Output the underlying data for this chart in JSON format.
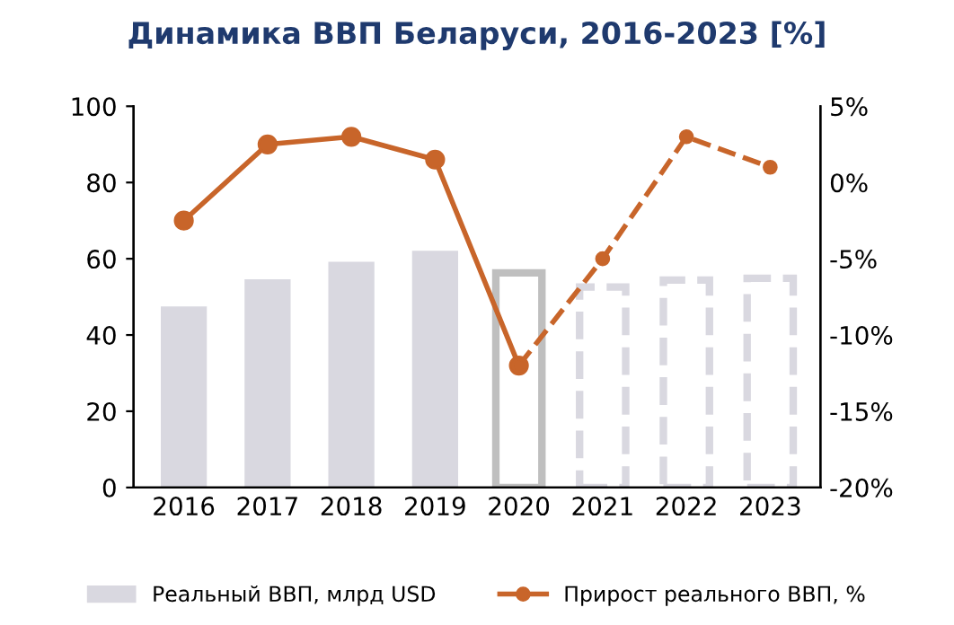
{
  "chart_data": {
    "type": "bar",
    "title": "Динамика ВВП Беларуси, 2016-2023 [%]",
    "categories": [
      "2016",
      "2017",
      "2018",
      "2019",
      "2020",
      "2021",
      "2022",
      "2023"
    ],
    "series": [
      {
        "name": "Реальный ВВП, млрд USD",
        "color": "#d9d8e0",
        "values": [
          47.5,
          54.6,
          59.2,
          62.1,
          null,
          null,
          null,
          null
        ]
      },
      {
        "color": "#bfbfbf",
        "line_style": "solid",
        "values": [
          null,
          null,
          null,
          null,
          56.3,
          null,
          null,
          null
        ]
      },
      {
        "color": "#d9d8e0",
        "line_style": "dashed",
        "values": [
          null,
          null,
          null,
          null,
          null,
          52.6,
          54.4,
          54.9
        ]
      },
      {
        "name": "Прирост реального ВВП, %",
        "type": "line",
        "axis": "y2",
        "color": "#c8652a",
        "line_style": "solid",
        "marker": "circle",
        "values": [
          -2.5,
          2.5,
          3.0,
          1.5,
          -12.0,
          null,
          null,
          null
        ]
      },
      {
        "type": "line",
        "axis": "y2",
        "color": "#c8652a",
        "line_style": "dashed",
        "marker": "circle",
        "values": [
          null,
          null,
          null,
          null,
          -12.0,
          -5.0,
          3.0,
          1.0
        ]
      }
    ],
    "ylim": [
      0,
      100
    ],
    "yticks": [
      0,
      20,
      40,
      60,
      80,
      100
    ],
    "y2lim": [
      -20,
      5
    ],
    "y2ticks": [
      {
        "value": -20,
        "label": "-20%"
      },
      {
        "value": -15,
        "label": "-15%"
      },
      {
        "value": -10,
        "label": "-10%"
      },
      {
        "value": -5,
        "label": "-5%"
      },
      {
        "value": 0,
        "label": "0%"
      },
      {
        "value": 5,
        "label": "5%"
      }
    ],
    "grid": false,
    "legend": "bottom"
  }
}
